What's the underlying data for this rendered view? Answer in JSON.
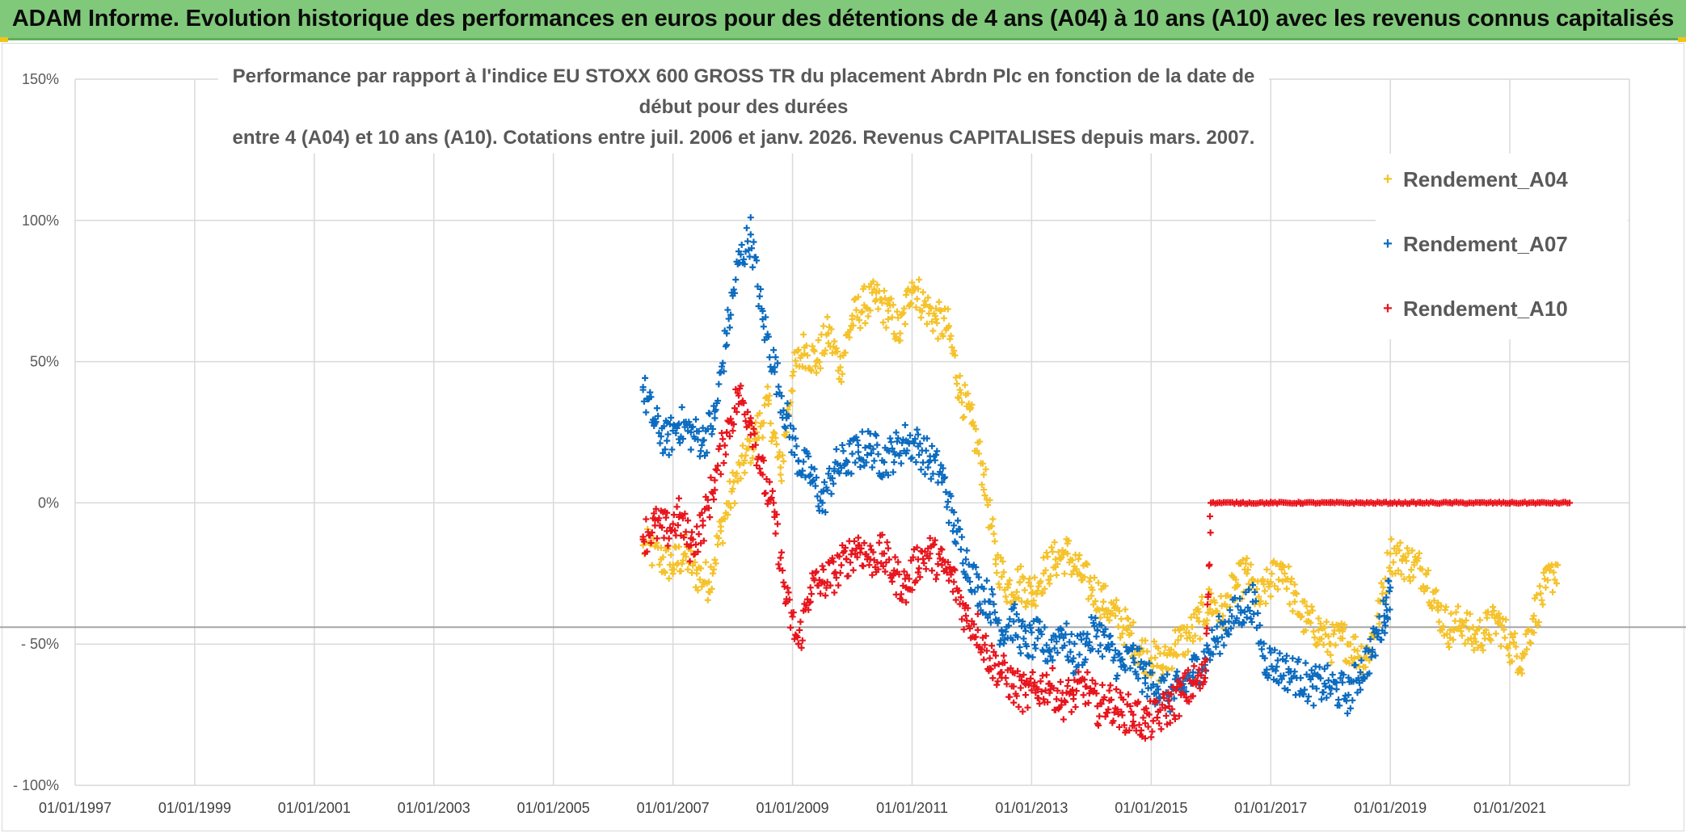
{
  "header": {
    "title": "ADAM Informe. Evolution historique des performances en euros pour des détentions de 4 ans (A04) à 10 ans (A10) avec les revenus connus capitalisés"
  },
  "chart_data": {
    "type": "scatter",
    "title_line1": "Performance par rapport à l'indice EU STOXX 600 GROSS TR  du placement Abrdn Plc en fonction de la date de début pour des durées",
    "title_line2": "entre 4 (A04) et 10 ans (A10). Cotations entre juil. 2006 et janv. 2026. Revenus CAPITALISES depuis mars. 2007.",
    "xlabel": "",
    "ylabel": "",
    "xlim": [
      1997.0,
      2023.0
    ],
    "ylim": [
      -100,
      150
    ],
    "y_ticks": [
      {
        "value": 150,
        "label": "150%"
      },
      {
        "value": 100,
        "label": "100%"
      },
      {
        "value": 50,
        "label": "50%"
      },
      {
        "value": 0,
        "label": "0%"
      },
      {
        "value": -50,
        "label": "- 50%"
      },
      {
        "value": -100,
        "label": "- 100%"
      }
    ],
    "x_ticks": [
      {
        "value": 1997,
        "label": "01/01/1997"
      },
      {
        "value": 1999,
        "label": "01/01/1999"
      },
      {
        "value": 2001,
        "label": "01/01/2001"
      },
      {
        "value": 2003,
        "label": "01/01/2003"
      },
      {
        "value": 2005,
        "label": "01/01/2005"
      },
      {
        "value": 2007,
        "label": "01/01/2007"
      },
      {
        "value": 2009,
        "label": "01/01/2009"
      },
      {
        "value": 2011,
        "label": "01/01/2011"
      },
      {
        "value": 2013,
        "label": "01/01/2013"
      },
      {
        "value": 2015,
        "label": "01/01/2015"
      },
      {
        "value": 2017,
        "label": "01/01/2017"
      },
      {
        "value": 2019,
        "label": "01/01/2019"
      },
      {
        "value": 2021,
        "label": "01/01/2021"
      }
    ],
    "reference_line": -44,
    "legend_position": "top-right",
    "series": [
      {
        "name": "Rendement_A04",
        "color": "#f5c22a",
        "x": [
          2006.5,
          2006.8,
          2007.0,
          2007.2,
          2007.4,
          2007.6,
          2007.8,
          2008.0,
          2008.2,
          2008.4,
          2008.6,
          2008.8,
          2009.0,
          2009.2,
          2009.4,
          2009.6,
          2009.8,
          2010.0,
          2010.2,
          2010.4,
          2010.6,
          2010.8,
          2011.0,
          2011.2,
          2011.4,
          2011.6,
          2011.8,
          2012.0,
          2012.2,
          2012.4,
          2012.6,
          2012.8,
          2013.0,
          2013.2,
          2013.4,
          2013.6,
          2013.8,
          2014.0,
          2014.2,
          2014.4,
          2014.6,
          2014.8,
          2015.0,
          2015.2,
          2015.4,
          2015.6,
          2015.8,
          2016.0,
          2016.2,
          2016.4,
          2016.6,
          2016.8,
          2017.0,
          2017.2,
          2017.4,
          2017.6,
          2017.8,
          2018.0,
          2018.2,
          2018.4,
          2018.6,
          2018.8,
          2019.0,
          2019.2,
          2019.4,
          2019.6,
          2019.8,
          2020.0,
          2020.2,
          2020.4,
          2020.6,
          2020.8,
          2021.0,
          2021.2,
          2021.4,
          2021.6,
          2021.8
        ],
        "values": [
          -15,
          -20,
          -22,
          -18,
          -25,
          -28,
          -10,
          5,
          15,
          25,
          35,
          10,
          45,
          55,
          50,
          60,
          48,
          65,
          70,
          72,
          68,
          60,
          78,
          70,
          65,
          62,
          40,
          28,
          10,
          -20,
          -30,
          -28,
          -32,
          -25,
          -20,
          -18,
          -25,
          -30,
          -35,
          -40,
          -45,
          -52,
          -55,
          -58,
          -50,
          -48,
          -42,
          -35,
          -40,
          -30,
          -25,
          -35,
          -28,
          -22,
          -35,
          -42,
          -45,
          -50,
          -48,
          -52,
          -55,
          -40,
          -18,
          -20,
          -22,
          -25,
          -38,
          -45,
          -42,
          -48,
          -45,
          -42,
          -50,
          -55,
          -40,
          -30,
          -22
        ]
      },
      {
        "name": "Rendement_A07",
        "color": "#0b6bbf",
        "x": [
          2006.5,
          2006.7,
          2006.9,
          2007.1,
          2007.3,
          2007.5,
          2007.7,
          2007.9,
          2008.1,
          2008.3,
          2008.5,
          2008.7,
          2008.9,
          2009.1,
          2009.3,
          2009.5,
          2009.7,
          2009.9,
          2010.1,
          2010.3,
          2010.5,
          2010.7,
          2010.9,
          2011.1,
          2011.3,
          2011.5,
          2011.7,
          2011.9,
          2012.1,
          2012.3,
          2012.5,
          2012.7,
          2012.9,
          2013.1,
          2013.3,
          2013.5,
          2013.7,
          2013.9,
          2014.1,
          2014.3,
          2014.5,
          2014.7,
          2014.9,
          2015.1,
          2015.3,
          2015.5,
          2015.7,
          2015.9,
          2016.1,
          2016.3,
          2016.5,
          2016.7,
          2016.9,
          2017.1,
          2017.3,
          2017.5,
          2017.7,
          2017.9,
          2018.1,
          2018.3,
          2018.5,
          2018.7,
          2018.9,
          2019.0
        ],
        "values": [
          40,
          28,
          22,
          28,
          25,
          22,
          30,
          60,
          85,
          95,
          65,
          48,
          30,
          15,
          10,
          0,
          12,
          15,
          18,
          20,
          15,
          18,
          22,
          20,
          15,
          10,
          -8,
          -20,
          -30,
          -35,
          -45,
          -42,
          -50,
          -48,
          -52,
          -45,
          -55,
          -50,
          -45,
          -52,
          -58,
          -55,
          -62,
          -65,
          -68,
          -66,
          -60,
          -55,
          -48,
          -42,
          -38,
          -35,
          -55,
          -58,
          -60,
          -62,
          -65,
          -64,
          -66,
          -68,
          -60,
          -52,
          -40,
          -30
        ]
      },
      {
        "name": "Rendement_A10",
        "color": "#e8141c",
        "x": [
          2006.5,
          2006.7,
          2006.9,
          2007.1,
          2007.3,
          2007.5,
          2007.7,
          2007.9,
          2008.1,
          2008.3,
          2008.5,
          2008.7,
          2008.9,
          2009.1,
          2009.3,
          2009.5,
          2009.7,
          2009.9,
          2010.1,
          2010.3,
          2010.5,
          2010.7,
          2010.9,
          2011.1,
          2011.3,
          2011.5,
          2011.7,
          2011.9,
          2012.1,
          2012.3,
          2012.5,
          2012.7,
          2012.9,
          2013.1,
          2013.3,
          2013.5,
          2013.7,
          2013.9,
          2014.1,
          2014.3,
          2014.5,
          2014.7,
          2014.9,
          2015.1,
          2015.3,
          2015.5,
          2015.7,
          2015.9,
          2016.0,
          2016.5,
          2017.0,
          2017.5,
          2018.0,
          2018.5,
          2019.0,
          2019.5,
          2020.0,
          2020.5,
          2021.0,
          2021.5,
          2022.0
        ],
        "values": [
          -12,
          -8,
          -10,
          -5,
          -15,
          -8,
          8,
          25,
          38,
          30,
          10,
          -5,
          -35,
          -50,
          -30,
          -28,
          -25,
          -20,
          -15,
          -20,
          -18,
          -25,
          -30,
          -20,
          -18,
          -22,
          -28,
          -40,
          -45,
          -55,
          -60,
          -65,
          -68,
          -66,
          -64,
          -70,
          -68,
          -65,
          -72,
          -70,
          -74,
          -75,
          -78,
          -76,
          -72,
          -68,
          -64,
          -62,
          0,
          0,
          0,
          0,
          0,
          0,
          0,
          0,
          0,
          0,
          0,
          0,
          0
        ]
      }
    ]
  }
}
